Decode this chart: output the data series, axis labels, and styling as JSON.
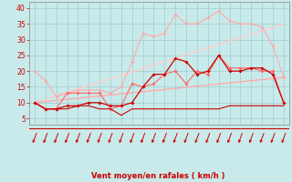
{
  "x": [
    0,
    1,
    2,
    3,
    4,
    5,
    6,
    7,
    8,
    9,
    10,
    11,
    12,
    13,
    14,
    15,
    16,
    17,
    18,
    19,
    20,
    21,
    22,
    23
  ],
  "line1": [
    10,
    8,
    8,
    8,
    9,
    9,
    8,
    8,
    6,
    8,
    8,
    8,
    8,
    8,
    8,
    8,
    8,
    8,
    9,
    9,
    9,
    9,
    9,
    9
  ],
  "line2": [
    10,
    8,
    8,
    9,
    9,
    10,
    10,
    9,
    9,
    10,
    15,
    19,
    19,
    24,
    23,
    19,
    20,
    25,
    20,
    20,
    21,
    21,
    19,
    10
  ],
  "line3": [
    10,
    8,
    8,
    13,
    13,
    13,
    13,
    8,
    9,
    16,
    15,
    16,
    19,
    20,
    16,
    20,
    19,
    25,
    21,
    21,
    21,
    20,
    20,
    10
  ],
  "line4": [
    20,
    17,
    12,
    13,
    14,
    14,
    14,
    13,
    15,
    23,
    32,
    31,
    32,
    38,
    35,
    35,
    37,
    39,
    36,
    35,
    35,
    34,
    28,
    18
  ],
  "line5_x": [
    0,
    23
  ],
  "line5_y": [
    10,
    18
  ],
  "line6_x": [
    0,
    23
  ],
  "line6_y": [
    10,
    35
  ],
  "bg_color": "#c8eaea",
  "grid_color": "#a0cccc",
  "line1_color": "#cc0000",
  "line2_color": "#cc0000",
  "line3_color": "#ff6666",
  "line4_color": "#ffaaaa",
  "line5_color": "#ffaaaa",
  "line6_color": "#ffcccc",
  "arrow_color": "#cc0000",
  "xlabel": "Vent moyen/en rafales ( km/h )",
  "ylim": [
    3,
    42
  ],
  "xlim": [
    -0.5,
    23.5
  ],
  "yticks": [
    5,
    10,
    15,
    20,
    25,
    30,
    35,
    40
  ],
  "xticks": [
    0,
    1,
    2,
    3,
    4,
    5,
    6,
    7,
    8,
    9,
    10,
    11,
    12,
    13,
    14,
    15,
    16,
    17,
    18,
    19,
    20,
    21,
    22,
    23
  ]
}
